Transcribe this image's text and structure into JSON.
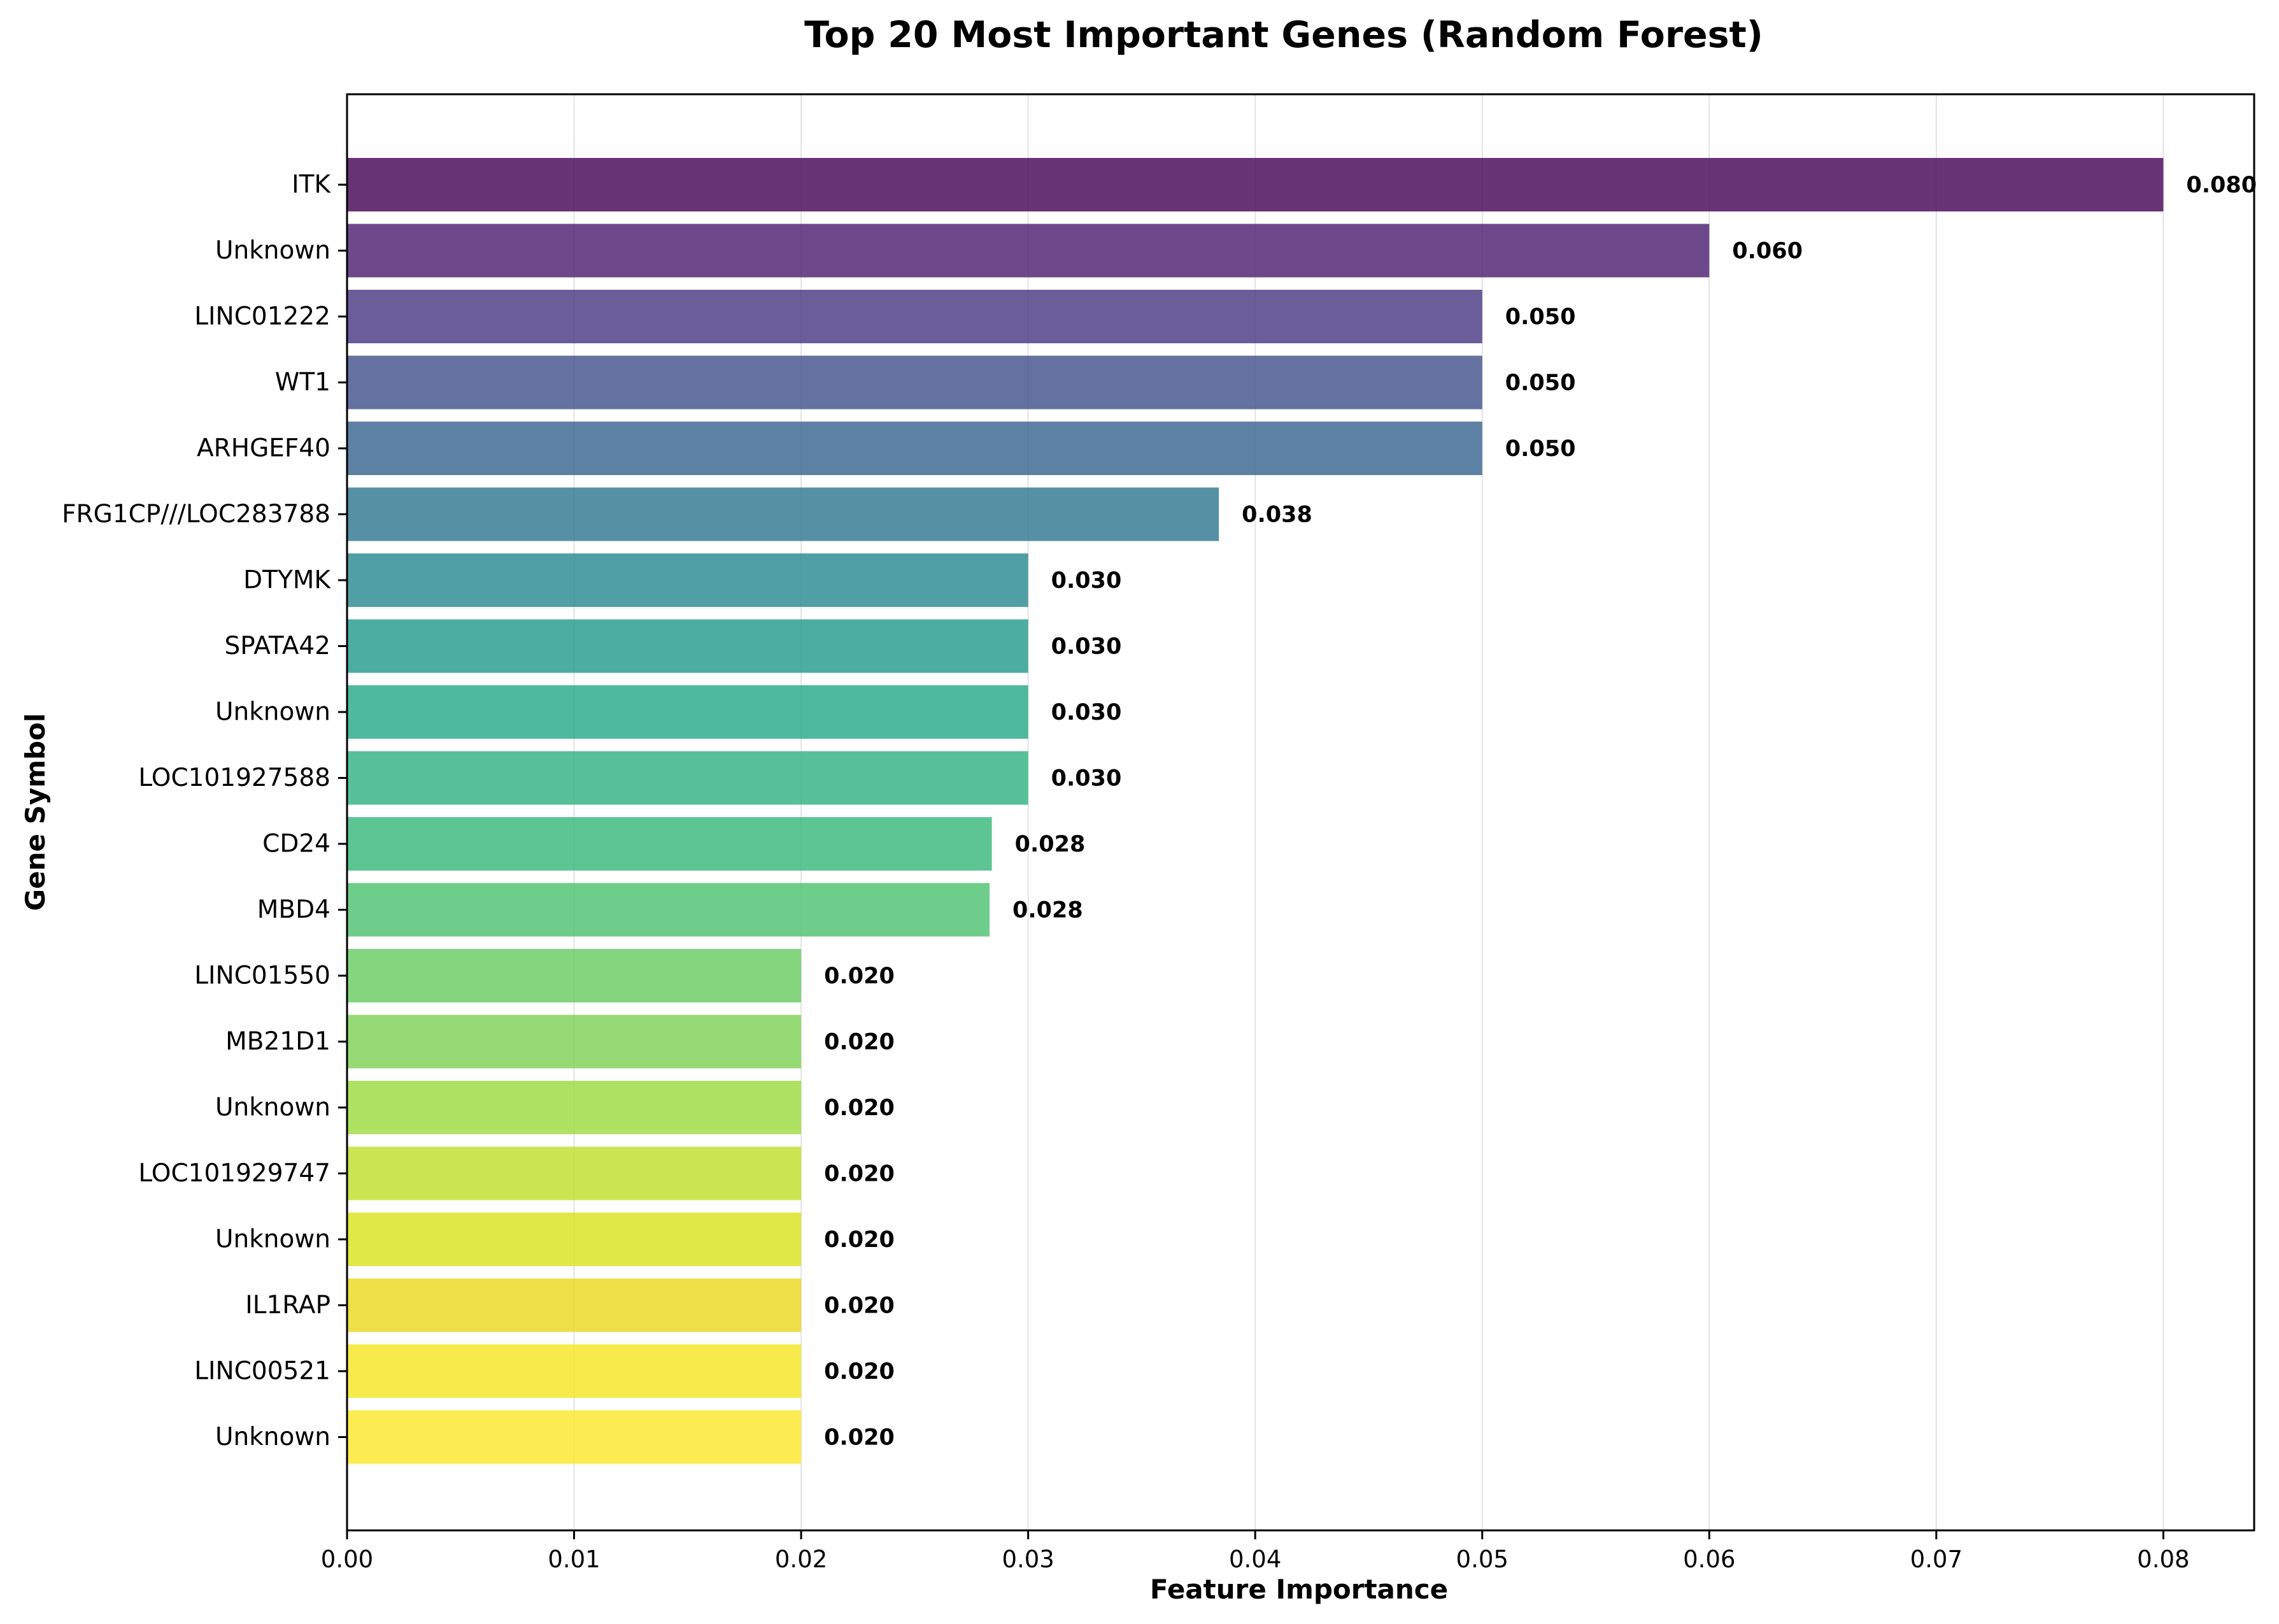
{
  "chart_data": {
    "type": "bar",
    "orientation": "horizontal",
    "title": "Top 20 Most Important Genes (Random Forest)",
    "xlabel": "Feature Importance",
    "ylabel": "Gene Symbol",
    "xlim": [
      0,
      0.084
    ],
    "xticks": [
      0.0,
      0.01,
      0.02,
      0.03,
      0.04,
      0.05,
      0.06,
      0.07,
      0.08
    ],
    "xtick_labels": [
      "0.00",
      "0.01",
      "0.02",
      "0.03",
      "0.04",
      "0.05",
      "0.06",
      "0.07",
      "0.08"
    ],
    "grid": "x",
    "categories": [
      "ITK",
      "Unknown",
      "LINC01222",
      "WT1",
      "ARHGEF40",
      "FRG1CP///LOC283788",
      "DTYMK",
      "SPATA42",
      "Unknown",
      "LOC101927588",
      "CD24",
      "MBD4",
      "LINC01550",
      "MB21D1",
      "Unknown",
      "LOC101929747",
      "Unknown",
      "IL1RAP",
      "LINC00521",
      "Unknown"
    ],
    "values": [
      0.08,
      0.06,
      0.05,
      0.05,
      0.05,
      0.0384,
      0.03,
      0.03,
      0.03,
      0.03,
      0.0284,
      0.0283,
      0.02,
      0.02,
      0.02,
      0.02,
      0.02,
      0.02,
      0.02,
      0.02
    ],
    "value_labels": [
      "0.080",
      "0.060",
      "0.050",
      "0.050",
      "0.050",
      "0.038",
      "0.030",
      "0.030",
      "0.030",
      "0.030",
      "0.028",
      "0.028",
      "0.020",
      "0.020",
      "0.020",
      "0.020",
      "0.020",
      "0.020",
      "0.020",
      "0.020"
    ],
    "colors": [
      "#440154",
      "#481c6e",
      "#453581",
      "#3d4d8a",
      "#34618d",
      "#2b748e",
      "#24878e",
      "#1f998a",
      "#22a884",
      "#2cb17e",
      "#35b779",
      "#4ac16d",
      "#65cb5e",
      "#7ad151",
      "#9bd93c",
      "#bddf26",
      "#d8e219",
      "#ead71b",
      "#f4e61e",
      "#fde725"
    ]
  }
}
